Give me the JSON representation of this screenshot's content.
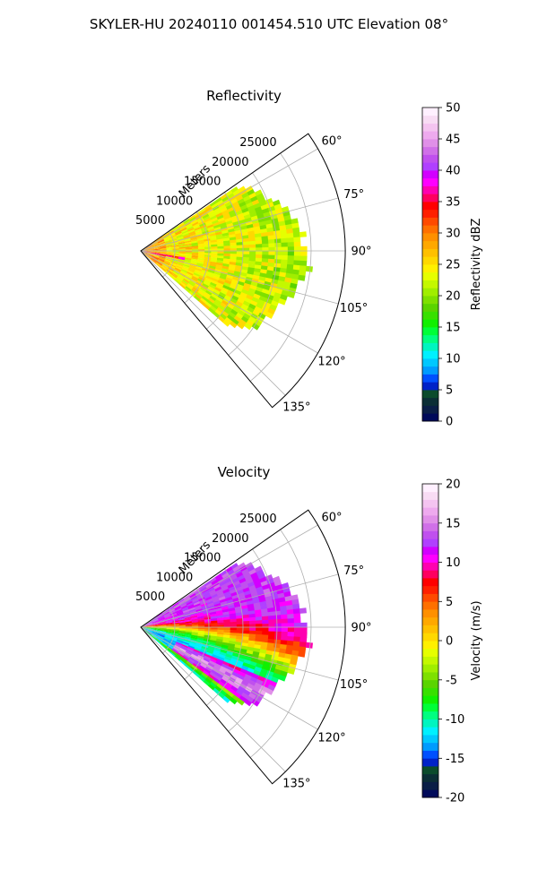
{
  "figure": {
    "suptitle": "SKYLER-HU  20240110  001454.510 UTC Elevation 08°"
  },
  "chart_data": [
    {
      "type": "heatmap",
      "kind": "polar-sector radar PPI",
      "title": "Reflectivity",
      "range_label": "Meters",
      "range_ticks": [
        "5000",
        "10000",
        "15000",
        "20000",
        "25000"
      ],
      "range_tick_values": [
        5000,
        10000,
        15000,
        20000,
        25000
      ],
      "range_max": 30000,
      "azimuth_ticks": [
        "60°",
        "75°",
        "90°",
        "105°",
        "120°",
        "135°"
      ],
      "azimuth_tick_values": [
        60,
        75,
        90,
        105,
        120,
        135
      ],
      "azimuth_limits": [
        55,
        140
      ],
      "data_azimuth_range": [
        56,
        131
      ],
      "colorbar": {
        "label": "Reflectivity dBZ",
        "ticks": [
          "0",
          "5",
          "10",
          "15",
          "20",
          "25",
          "30",
          "35",
          "40",
          "45",
          "50"
        ],
        "range": [
          0,
          50
        ],
        "colors": [
          "#000a5a",
          "#0a1e46",
          "#0b2e35",
          "#0b4b2c",
          "#0022c8",
          "#0050ff",
          "#009bff",
          "#00c8ff",
          "#00f0ff",
          "#00f5c0",
          "#00ff80",
          "#00ff38",
          "#10f000",
          "#38e000",
          "#5ad400",
          "#7ee000",
          "#a0ee00",
          "#c4f800",
          "#e6ff00",
          "#fff000",
          "#ffd800",
          "#ffc000",
          "#ffa800",
          "#ff9000",
          "#ff7000",
          "#ff4a00",
          "#ff2000",
          "#ff0000",
          "#ff0060",
          "#ff00b0",
          "#ff00ff",
          "#d200ff",
          "#b040ff",
          "#c050ee",
          "#d070e8",
          "#e090e8",
          "#eeaaee",
          "#f4c4f0",
          "#f8dcf4",
          "#fff0ff"
        ]
      }
    },
    {
      "type": "heatmap",
      "kind": "polar-sector radar PPI",
      "title": "Velocity",
      "range_label": "Meters",
      "range_ticks": [
        "5000",
        "10000",
        "15000",
        "20000",
        "25000"
      ],
      "range_tick_values": [
        5000,
        10000,
        15000,
        20000,
        25000
      ],
      "range_max": 30000,
      "azimuth_ticks": [
        "60°",
        "75°",
        "90°",
        "105°",
        "120°",
        "135°"
      ],
      "azimuth_tick_values": [
        60,
        75,
        90,
        105,
        120,
        135
      ],
      "azimuth_limits": [
        55,
        140
      ],
      "data_azimuth_range": [
        56,
        131
      ],
      "colorbar": {
        "label": "Velocity (m/s)",
        "ticks": [
          "-20",
          "-15",
          "-10",
          "-5",
          "0",
          "5",
          "10",
          "15",
          "20"
        ],
        "range": [
          -20,
          20
        ],
        "colors": [
          "#000a5a",
          "#0a1e46",
          "#0b2e35",
          "#0b4b2c",
          "#0022c8",
          "#0050ff",
          "#009bff",
          "#00c8ff",
          "#00f0ff",
          "#00f5c0",
          "#00ff80",
          "#00ff38",
          "#10f000",
          "#38e000",
          "#5ad400",
          "#7ee000",
          "#a0ee00",
          "#c4f800",
          "#e6ff00",
          "#fff000",
          "#ffd800",
          "#ffc000",
          "#ffa800",
          "#ff9000",
          "#ff7000",
          "#ff4a00",
          "#ff2000",
          "#ff0000",
          "#ff0060",
          "#ff00b0",
          "#ff00ff",
          "#d200ff",
          "#b040ff",
          "#c050ee",
          "#d070e8",
          "#e090e8",
          "#eeaaee",
          "#f4c4f0",
          "#f8dcf4",
          "#fff0ff"
        ]
      }
    }
  ]
}
